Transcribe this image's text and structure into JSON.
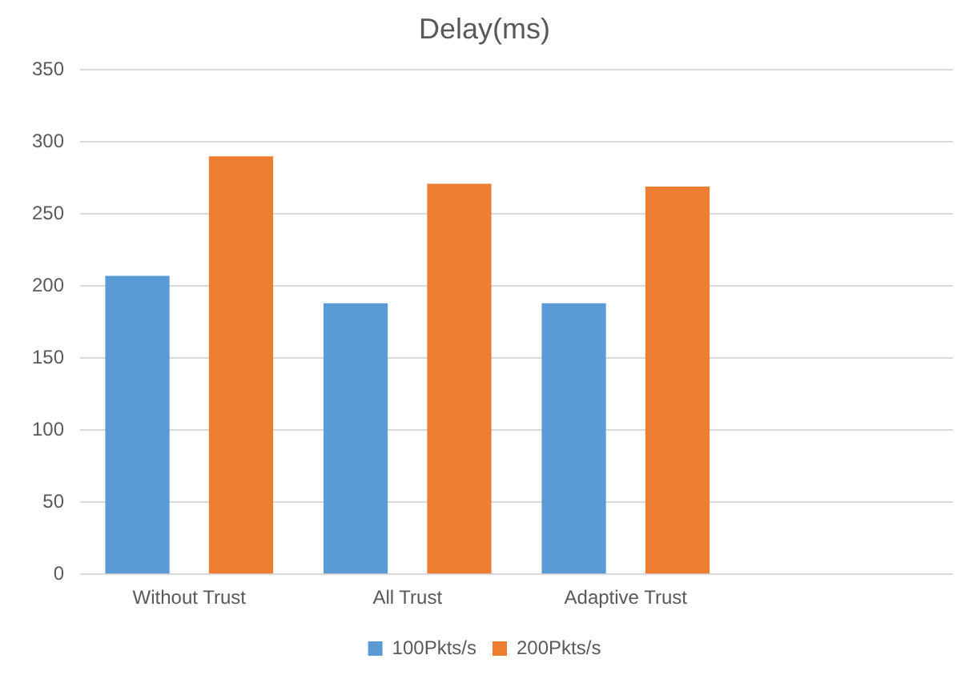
{
  "chart_data": {
    "type": "bar",
    "title": "Delay(ms)",
    "categories": [
      "Without Trust",
      "All Trust",
      "Adaptive Trust",
      null
    ],
    "series": [
      {
        "name": "100Pkts/s",
        "color": "#5b9bd5",
        "values": [
          207,
          188,
          188,
          null
        ]
      },
      {
        "name": "200Pkts/s",
        "color": "#ed7d31",
        "values": [
          290,
          271,
          269,
          null
        ]
      }
    ],
    "ylim": [
      0,
      350
    ],
    "yticks": [
      0,
      50,
      100,
      150,
      200,
      250,
      300,
      350
    ],
    "grid": "y",
    "legend": "bottom"
  }
}
